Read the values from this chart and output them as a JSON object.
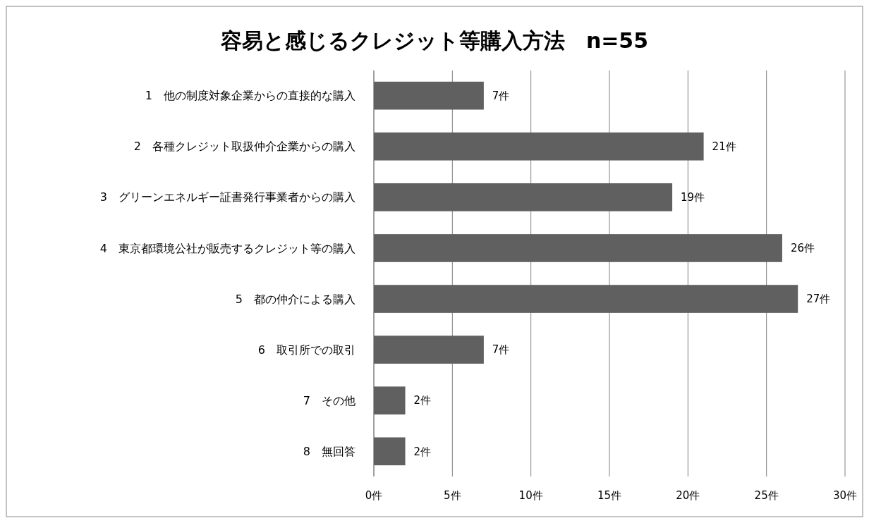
{
  "chart_data": {
    "type": "bar",
    "orientation": "horizontal",
    "title": "容易と感じるクレジット等購入方法　n=55",
    "categories": [
      "1　他の制度対象企業からの直接的な購入",
      "2　各種クレジット取扱仲介企業からの購入",
      "3　グリーンエネルギー証書発行事業者からの購入",
      "4　東京都環境公社が販売するクレジット等の購入",
      "5　都の仲介による購入",
      "6　取引所での取引",
      "7　その他",
      "8　無回答"
    ],
    "values": [
      7,
      21,
      19,
      26,
      27,
      7,
      2,
      2
    ],
    "value_labels": [
      "7件",
      "21件",
      "19件",
      "26件",
      "27件",
      "7件",
      "2件",
      "2件"
    ],
    "color": "#606060",
    "xlim": [
      0,
      30
    ],
    "xticks": [
      {
        "value": 0,
        "label": "0件"
      },
      {
        "value": 5,
        "label": "5件"
      },
      {
        "value": 10,
        "label": "10件"
      },
      {
        "value": 15,
        "label": "15件"
      },
      {
        "value": 20,
        "label": "20件"
      },
      {
        "value": 25,
        "label": "25件"
      },
      {
        "value": 30,
        "label": "30件"
      }
    ],
    "grid": "x"
  }
}
